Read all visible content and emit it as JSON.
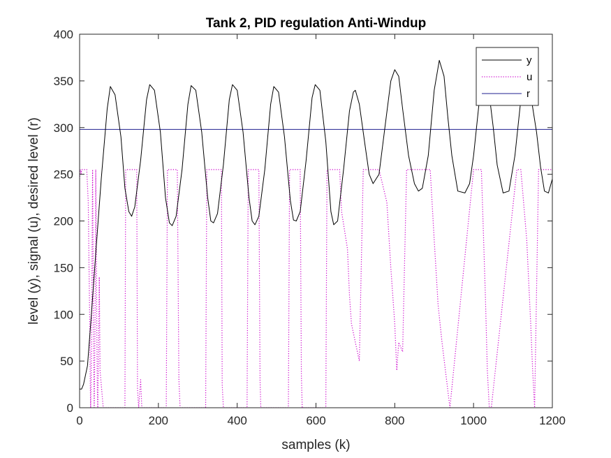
{
  "chart_data": {
    "type": "line",
    "title": "Tank 2, PID regulation Anti-Windup",
    "xlabel": "samples (k)",
    "ylabel": "level (y), signal (u), desired level (r)",
    "xlim": [
      0,
      1200
    ],
    "ylim": [
      0,
      400
    ],
    "xticks": [
      0,
      200,
      400,
      600,
      800,
      1000,
      1200
    ],
    "yticks": [
      0,
      50,
      100,
      150,
      200,
      250,
      300,
      350,
      400
    ],
    "x_tick_labels": [
      "0",
      "200",
      "400",
      "600",
      "800",
      "1000",
      "1200"
    ],
    "y_tick_labels": [
      "0",
      "50",
      "100",
      "150",
      "200",
      "250",
      "300",
      "350",
      "400"
    ],
    "grid": false,
    "legend_position": "top-right",
    "series": [
      {
        "name": "y",
        "color": "#000000",
        "style": "solid",
        "x": [
          0,
          5,
          10,
          20,
          30,
          40,
          55,
          70,
          78,
          90,
          105,
          115,
          125,
          132,
          140,
          155,
          170,
          178,
          190,
          205,
          218,
          228,
          235,
          245,
          260,
          275,
          283,
          295,
          310,
          325,
          333,
          340,
          350,
          365,
          380,
          388,
          400,
          415,
          430,
          438,
          445,
          455,
          470,
          485,
          493,
          505,
          520,
          535,
          543,
          550,
          560,
          575,
          590,
          598,
          610,
          625,
          638,
          645,
          655,
          670,
          685,
          695,
          700,
          710,
          725,
          735,
          745,
          760,
          775,
          790,
          800,
          810,
          820,
          835,
          850,
          860,
          870,
          885,
          900,
          913,
          925,
          935,
          945,
          960,
          978,
          990,
          1000,
          1015,
          1030,
          1040,
          1050,
          1060,
          1075,
          1090,
          1105,
          1120,
          1130,
          1145,
          1160,
          1170,
          1180,
          1190,
          1200
        ],
        "values": [
          20,
          20,
          25,
          45,
          100,
          160,
          245,
          320,
          344,
          335,
          290,
          235,
          210,
          205,
          215,
          265,
          330,
          346,
          340,
          295,
          225,
          198,
          195,
          205,
          255,
          325,
          345,
          340,
          295,
          225,
          200,
          198,
          208,
          260,
          330,
          346,
          340,
          295,
          225,
          200,
          196,
          205,
          255,
          325,
          344,
          338,
          290,
          222,
          201,
          200,
          210,
          265,
          332,
          346,
          340,
          285,
          210,
          196,
          200,
          255,
          318,
          338,
          340,
          325,
          280,
          250,
          240,
          250,
          300,
          350,
          362,
          355,
          320,
          270,
          240,
          232,
          235,
          270,
          340,
          372,
          355,
          310,
          270,
          232,
          230,
          240,
          270,
          330,
          350,
          335,
          300,
          260,
          230,
          232,
          270,
          330,
          350,
          335,
          295,
          258,
          232,
          230,
          245
        ]
      },
      {
        "name": "u",
        "color": "#cc00cc",
        "style": "dotted",
        "x": [
          0,
          2,
          4,
          5,
          8,
          12,
          18,
          22,
          24,
          26,
          27,
          28,
          29,
          30,
          31,
          32,
          33,
          34,
          35,
          36,
          37,
          38,
          39,
          40,
          41,
          42,
          43,
          44,
          45,
          46,
          48,
          50,
          52,
          60,
          100,
          115,
          117,
          120,
          145,
          147,
          150,
          155,
          158,
          160,
          220,
          223,
          225,
          248,
          252,
          255,
          320,
          323,
          325,
          360,
          362,
          365,
          425,
          428,
          430,
          455,
          458,
          460,
          530,
          533,
          535,
          560,
          563,
          565,
          625,
          628,
          630,
          660,
          665,
          680,
          685,
          690,
          700,
          710,
          720,
          725,
          760,
          780,
          790,
          800,
          805,
          810,
          820,
          830,
          890,
          900,
          910,
          920,
          940,
          1000,
          1020,
          1030,
          1035,
          1040,
          1045,
          1110,
          1120,
          1135,
          1145,
          1150,
          1155,
          1165,
          1200
        ],
        "values": [
          245,
          255,
          250,
          255,
          255,
          255,
          255,
          220,
          150,
          80,
          30,
          0,
          20,
          60,
          120,
          200,
          255,
          180,
          100,
          40,
          0,
          30,
          80,
          150,
          255,
          200,
          130,
          70,
          20,
          0,
          60,
          140,
          40,
          0,
          0,
          0,
          255,
          255,
          255,
          20,
          0,
          30,
          0,
          0,
          0,
          255,
          255,
          255,
          30,
          0,
          0,
          255,
          255,
          255,
          25,
          0,
          0,
          255,
          255,
          255,
          30,
          0,
          0,
          255,
          255,
          255,
          35,
          0,
          0,
          255,
          255,
          255,
          210,
          170,
          120,
          90,
          70,
          50,
          255,
          255,
          255,
          220,
          150,
          90,
          40,
          70,
          60,
          255,
          255,
          180,
          110,
          70,
          0,
          255,
          255,
          120,
          40,
          0,
          0,
          255,
          255,
          180,
          90,
          40,
          0,
          255,
          255
        ]
      },
      {
        "name": "r",
        "color": "#1f1f8f",
        "style": "solid",
        "x": [
          0,
          1200
        ],
        "values": [
          298,
          298
        ]
      }
    ]
  }
}
